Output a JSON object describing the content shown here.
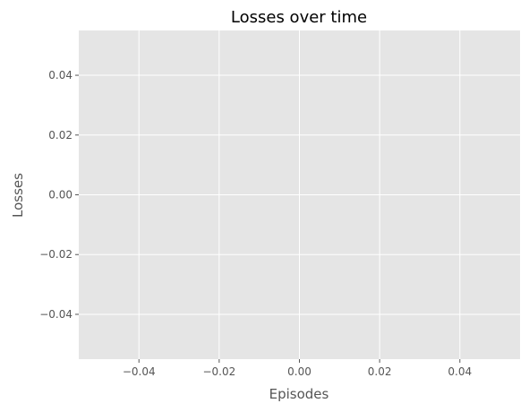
{
  "chart_data": {
    "type": "line",
    "title": "Losses over time",
    "xlabel": "Episodes",
    "ylabel": "Losses",
    "series": [
      {
        "x": [],
        "values": []
      }
    ],
    "xlim": [
      -0.055,
      0.055
    ],
    "ylim": [
      -0.055,
      0.055
    ],
    "x_ticks": [
      -0.04,
      -0.02,
      0.0,
      0.02,
      0.04
    ],
    "y_ticks": [
      -0.04,
      -0.02,
      0.0,
      0.02,
      0.04
    ],
    "x_tick_labels": [
      "−0.04",
      "−0.02",
      "0.00",
      "0.02",
      "0.04"
    ],
    "y_tick_labels": [
      "−0.04",
      "−0.02",
      "0.00",
      "0.02",
      "0.04"
    ],
    "grid": true,
    "legend": "none",
    "colors": {
      "plot_background": "#e5e5e5",
      "grid": "#ffffff",
      "text": "#555555",
      "title": "#000000",
      "tick_mark": "#555555"
    }
  }
}
